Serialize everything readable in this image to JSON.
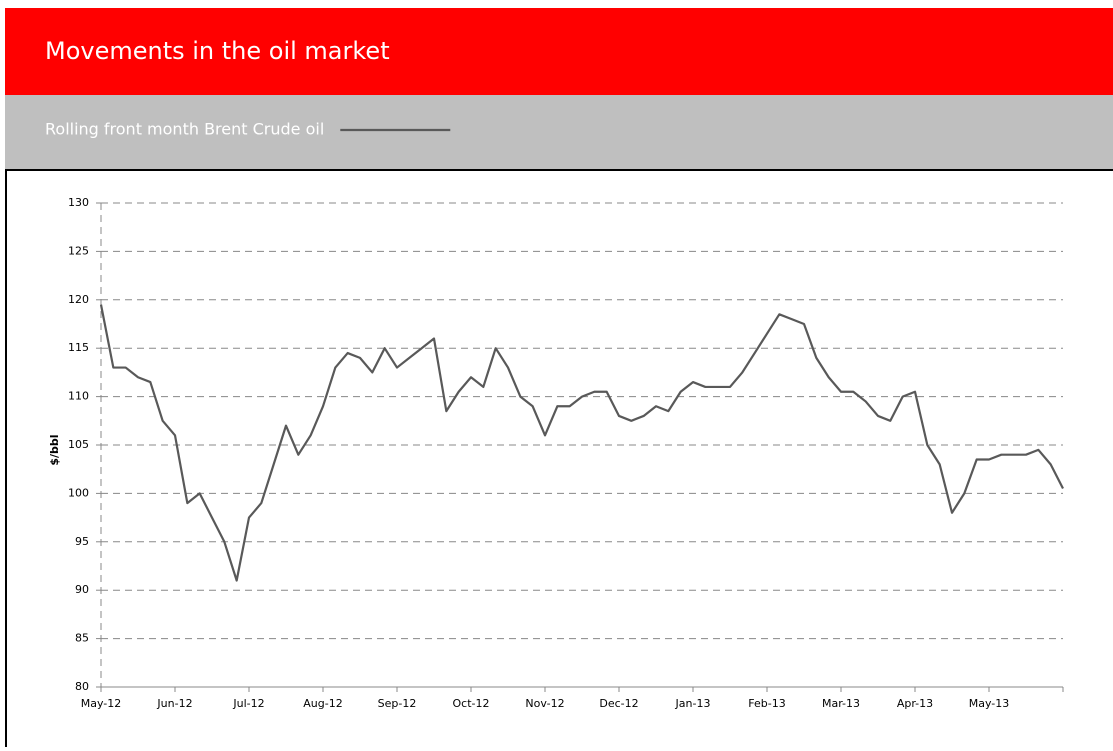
{
  "chart_data": {
    "type": "line",
    "title": "Movements in the oil market",
    "y_label": "$/bbl",
    "ylim": [
      80,
      130
    ],
    "yticks": [
      80,
      85,
      90,
      95,
      100,
      105,
      110,
      115,
      120,
      125,
      130
    ],
    "grid": true,
    "categories": [
      "May-12",
      null,
      null,
      null,
      null,
      null,
      "Jun-12",
      null,
      null,
      null,
      null,
      null,
      "Jul-12",
      null,
      null,
      null,
      null,
      null,
      "Aug-12",
      null,
      null,
      null,
      null,
      null,
      "Sep-12",
      null,
      null,
      null,
      null,
      null,
      "Oct-12",
      null,
      null,
      null,
      null,
      null,
      "Nov-12",
      null,
      null,
      null,
      null,
      null,
      "Dec-12",
      null,
      null,
      null,
      null,
      null,
      "Jan-13",
      null,
      null,
      null,
      null,
      null,
      "Feb-13",
      null,
      null,
      null,
      null,
      null,
      "Mar-13",
      null,
      null,
      null,
      null,
      null,
      "Apr-13",
      null,
      null,
      null,
      null,
      null,
      "May-13",
      null,
      null,
      null,
      null,
      null,
      null
    ],
    "series": [
      {
        "name": "Rolling front month Brent Crude oil",
        "color": "#595959",
        "values": [
          119.5,
          113,
          113,
          112,
          111.5,
          107.5,
          106,
          99,
          100,
          97.5,
          95,
          91,
          97.5,
          99,
          103,
          107,
          104,
          106,
          109,
          113,
          114.5,
          114,
          112.5,
          115,
          113,
          114,
          115,
          116,
          108.5,
          110.5,
          112,
          111,
          115,
          113,
          110,
          109,
          106,
          109,
          109,
          110,
          110.5,
          110.5,
          108,
          107.5,
          108,
          109,
          108.5,
          110.5,
          111.5,
          111,
          111,
          111,
          112.5,
          114.5,
          116.5,
          118.5,
          118,
          117.5,
          114,
          112,
          110.5,
          110.5,
          109.5,
          108,
          107.5,
          110,
          110.5,
          105,
          103,
          98,
          100,
          103.5,
          103.5,
          104,
          104,
          104,
          104.5,
          103,
          100.5
        ]
      }
    ]
  }
}
